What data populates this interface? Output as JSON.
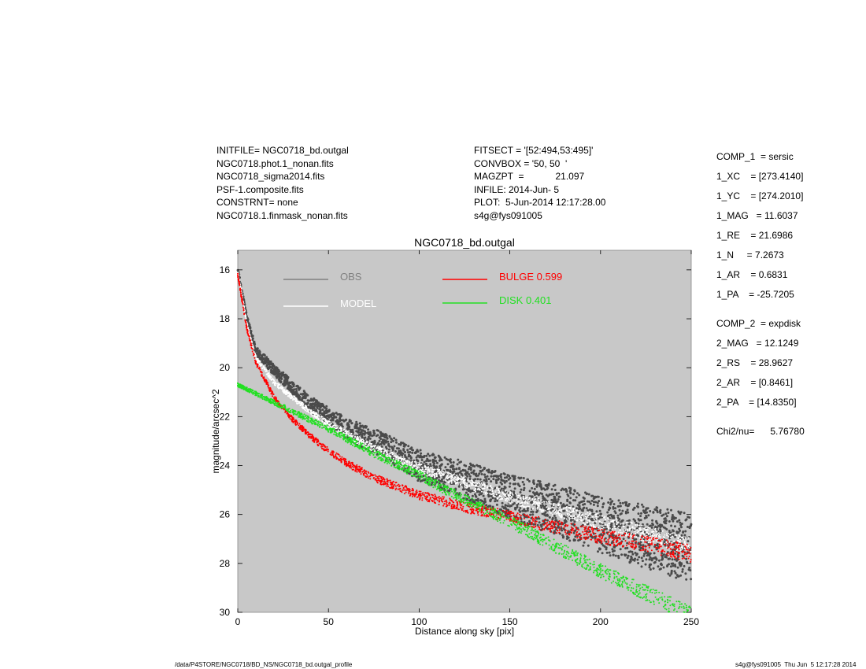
{
  "header_left": [
    "INITFILE= NGC0718_bd.outgal",
    "NGC0718.phot.1_nonan.fits",
    "NGC0718_sigma2014.fits",
    "PSF-1.composite.fits",
    "CONSTRNT= none",
    "NGC0718.1.finmask_nonan.fits"
  ],
  "header_mid": [
    "FITSECT = '[52:494,53:495]'",
    "CONVBOX = '50, 50  '",
    "MAGZPT  =            21.097",
    "INFILE: 2014-Jun- 5",
    "PLOT:  5-Jun-2014 12:17:28.00",
    "s4g@fys091005"
  ],
  "params": [
    "COMP_1  = sersic",
    "1_XC    = [273.4140]",
    "1_YC    = [274.2010]",
    "1_MAG   = 11.6037",
    "1_RE    = 21.6986",
    "1_N     = 7.2673",
    "1_AR    = 0.6831",
    "1_PA    = -25.7205",
    "COMP_2  = expdisk",
    "2_MAG   = 12.1249",
    "2_RS    = 28.9627",
    "2_AR    = [0.8461]",
    "2_PA    = [14.8350]",
    "Chi2/nu=      5.76780"
  ],
  "footer_left": "/data/P4STORE/NGC0718/BD_NS/NGC0718_bd.outgal_profile",
  "footer_right": "s4g@fys091005  Thu Jun  5 12:17:28 2014",
  "colors": {
    "background": "#c8c8c8",
    "obs": "#4a4a4a",
    "obs_legend": "#808080",
    "model": "#ffffff",
    "bulge": "#ff0000",
    "disk": "#22e022"
  },
  "chart_data": {
    "type": "scatter",
    "title": "NGC0718_bd.outgal",
    "xlabel": "Distance along sky [pix]",
    "ylabel": "magnitude/arcsec^2",
    "xlim": [
      0,
      250
    ],
    "ylim": [
      30,
      15.2
    ],
    "y_inverted": true,
    "xticks": [
      0,
      50,
      100,
      150,
      200,
      250
    ],
    "yticks": [
      16,
      18,
      20,
      22,
      24,
      26,
      28,
      30
    ],
    "legend": [
      {
        "label": "OBS",
        "color": "#808080",
        "position": "top-left"
      },
      {
        "label": "MODEL",
        "color": "#ffffff",
        "position": "top-left"
      },
      {
        "label": "BULGE  0.599",
        "color": "#ff0000",
        "position": "top-center"
      },
      {
        "label": "DISK  0.401",
        "color": "#22e022",
        "position": "top-center"
      }
    ],
    "series": [
      {
        "name": "OBS",
        "points": [
          [
            0,
            16.0
          ],
          [
            5,
            18.0
          ],
          [
            10,
            19.3
          ],
          [
            20,
            20.1
          ],
          [
            30,
            20.8
          ],
          [
            40,
            21.5
          ],
          [
            50,
            22.0
          ],
          [
            60,
            22.5
          ],
          [
            75,
            23.0
          ],
          [
            100,
            24.0
          ],
          [
            125,
            24.6
          ],
          [
            150,
            25.3
          ],
          [
            175,
            25.8
          ],
          [
            200,
            26.4
          ],
          [
            225,
            26.9
          ],
          [
            250,
            27.4
          ]
        ]
      },
      {
        "name": "MODEL",
        "points": [
          [
            0,
            16.1
          ],
          [
            5,
            18.2
          ],
          [
            10,
            19.6
          ],
          [
            20,
            20.6
          ],
          [
            30,
            21.2
          ],
          [
            40,
            21.8
          ],
          [
            50,
            22.3
          ],
          [
            60,
            22.7
          ],
          [
            75,
            23.3
          ],
          [
            100,
            24.1
          ],
          [
            125,
            24.7
          ],
          [
            150,
            25.3
          ],
          [
            175,
            25.8
          ],
          [
            200,
            26.3
          ],
          [
            225,
            26.8
          ],
          [
            250,
            27.3
          ]
        ]
      },
      {
        "name": "BULGE  0.599",
        "points": [
          [
            0,
            16.2
          ],
          [
            5,
            18.4
          ],
          [
            10,
            19.8
          ],
          [
            20,
            21.2
          ],
          [
            30,
            22.1
          ],
          [
            40,
            22.8
          ],
          [
            50,
            23.4
          ],
          [
            60,
            23.9
          ],
          [
            75,
            24.5
          ],
          [
            100,
            25.2
          ],
          [
            125,
            25.7
          ],
          [
            150,
            26.1
          ],
          [
            175,
            26.5
          ],
          [
            200,
            26.9
          ],
          [
            225,
            27.2
          ],
          [
            250,
            27.6
          ]
        ]
      },
      {
        "name": "DISK  0.401",
        "points": [
          [
            0,
            20.7
          ],
          [
            25,
            21.6
          ],
          [
            50,
            22.5
          ],
          [
            75,
            23.5
          ],
          [
            100,
            24.4
          ],
          [
            125,
            25.4
          ],
          [
            150,
            26.3
          ],
          [
            175,
            27.3
          ],
          [
            200,
            28.3
          ],
          [
            225,
            29.2
          ],
          [
            250,
            30.1
          ]
        ]
      }
    ]
  }
}
